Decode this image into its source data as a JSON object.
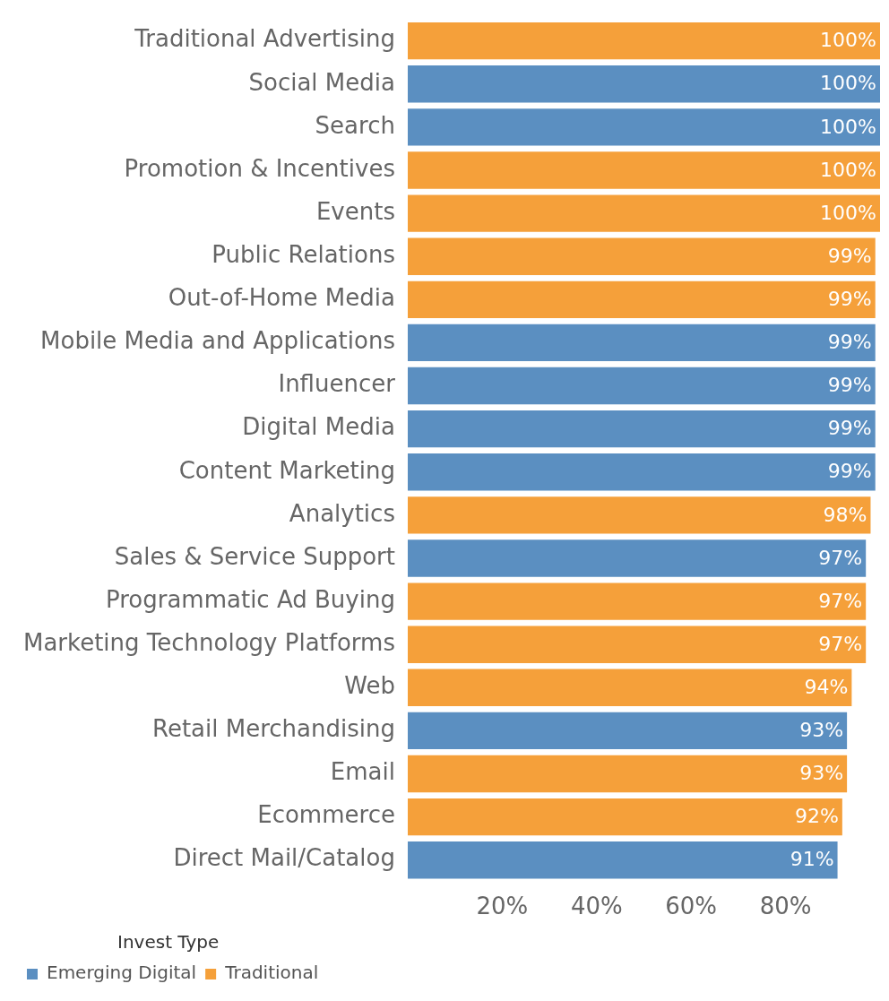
{
  "chart_data": {
    "type": "bar",
    "orientation": "horizontal",
    "legend_title": "Invest Type",
    "legend": "bottom left",
    "grid": false,
    "categories": [
      "Traditional Advertising",
      "Social Media",
      "Search",
      "Promotion & Incentives",
      "Events",
      "Public Relations",
      "Out-of-Home Media",
      "Mobile Media and Applications",
      "Influencer",
      "Digital Media",
      "Content Marketing",
      "Analytics",
      "Sales & Service Support",
      "Programmatic Ad Buying",
      "Marketing Technology Platforms",
      "Web",
      "Retail Merchandising",
      "Email",
      "Ecommerce",
      "Direct Mail/Catalog"
    ],
    "series": [
      {
        "name": "Emerging Digital",
        "color": "#5b8fc1",
        "values": [
          null,
          100,
          100,
          null,
          null,
          null,
          null,
          99,
          99,
          99,
          99,
          null,
          97,
          null,
          null,
          null,
          93,
          null,
          null,
          91
        ],
        "value_labels": [
          null,
          "100%",
          "100%",
          null,
          null,
          null,
          null,
          "99%",
          "99%",
          "99%",
          "99%",
          null,
          "97%",
          null,
          null,
          null,
          "93%",
          null,
          null,
          "91%"
        ]
      },
      {
        "name": "Traditional",
        "color": "#f5a03a",
        "values": [
          100,
          null,
          null,
          100,
          100,
          99,
          99,
          null,
          null,
          null,
          null,
          98,
          null,
          97,
          97,
          94,
          null,
          93,
          92,
          null
        ],
        "value_labels": [
          "100%",
          null,
          null,
          "100%",
          "100%",
          "99%",
          "99%",
          null,
          null,
          null,
          null,
          "98%",
          null,
          "97%",
          "97%",
          "94%",
          null,
          "93%",
          "92%",
          null
        ]
      }
    ],
    "xlim": [
      0,
      100
    ],
    "xticks": [
      {
        "value": 20,
        "label": "20%"
      },
      {
        "value": 40,
        "label": "40%"
      },
      {
        "value": 60,
        "label": "60%"
      },
      {
        "value": 80,
        "label": "80%"
      }
    ]
  }
}
